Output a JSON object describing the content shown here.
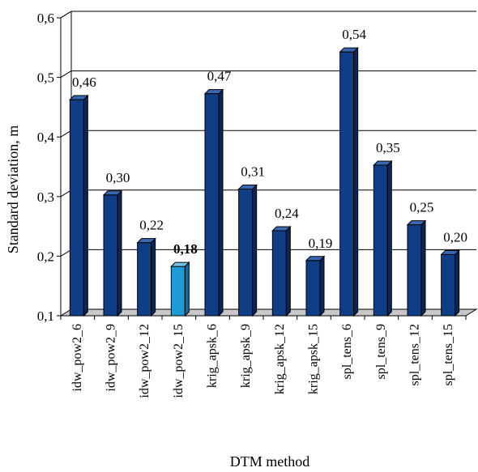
{
  "chart_data": {
    "type": "bar",
    "xlabel": "DTM method",
    "ylabel": "Standard deviation, m",
    "ylim": [
      0.1,
      0.6
    ],
    "yticks": [
      "0,1",
      "0,2",
      "0,3",
      "0,4",
      "0,5",
      "0,6"
    ],
    "grid": true,
    "categories": [
      "idw_pow2_6",
      "idw_pow2_9",
      "idw_pow2_12",
      "idw_pow2_15",
      "krig_apsk_6",
      "krig_apsk_9",
      "krig_apsk_12",
      "krig_apsk_15",
      "spl_tens_6",
      "spl_tens_9",
      "spl_tens_12",
      "spl_tens_15"
    ],
    "values": [
      0.46,
      0.3,
      0.22,
      0.18,
      0.47,
      0.31,
      0.24,
      0.19,
      0.54,
      0.35,
      0.25,
      0.2
    ],
    "value_labels": [
      "0,46",
      "0,30",
      "0,22",
      "0,18",
      "0,47",
      "0,31",
      "0,24",
      "0,19",
      "0,54",
      "0,35",
      "0,25",
      "0,20"
    ],
    "highlight_index": 3,
    "colors": {
      "bar_front": "#0f3d86",
      "bar_side": "#0a2656",
      "bar_top": "#3a67b2",
      "highlight_front": "#1e9ad6",
      "highlight_side": "#156c9a",
      "highlight_top": "#73c4ea",
      "floor": "#c8c8c8",
      "grid": "#000000"
    }
  }
}
